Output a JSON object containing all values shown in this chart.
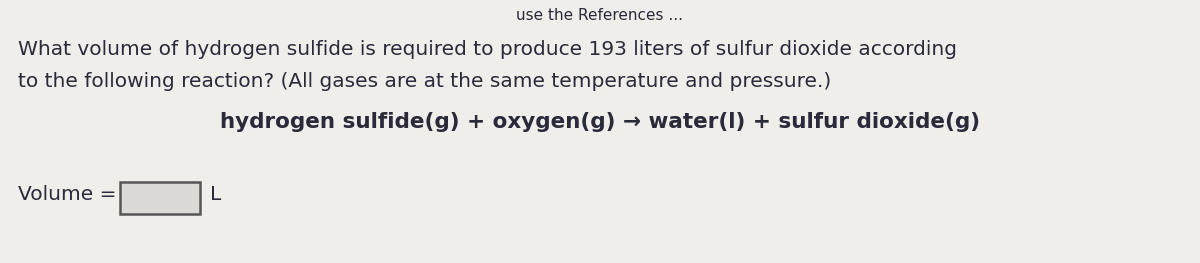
{
  "background_color": "#f0eeeb",
  "top_text_line1": "What volume of hydrogen sulfide is required to produce 193 liters of sulfur dioxide according",
  "top_text_line2": "to the following reaction? (All gases are at the same temperature and pressure.)",
  "reaction_text": "hydrogen sulfide(g) + oxygen(g) → water(l) + sulfur dioxide(g)",
  "volume_label": "Volume =",
  "unit_label": "L",
  "text_color": "#2a2a3a",
  "box_fill_color": "#dcdad6",
  "box_edge_color": "#555555",
  "top_partial_text": "use the References ...",
  "font_size_body": 14.5,
  "font_size_reaction": 15.5,
  "font_size_volume": 14.5,
  "font_size_top": 11
}
